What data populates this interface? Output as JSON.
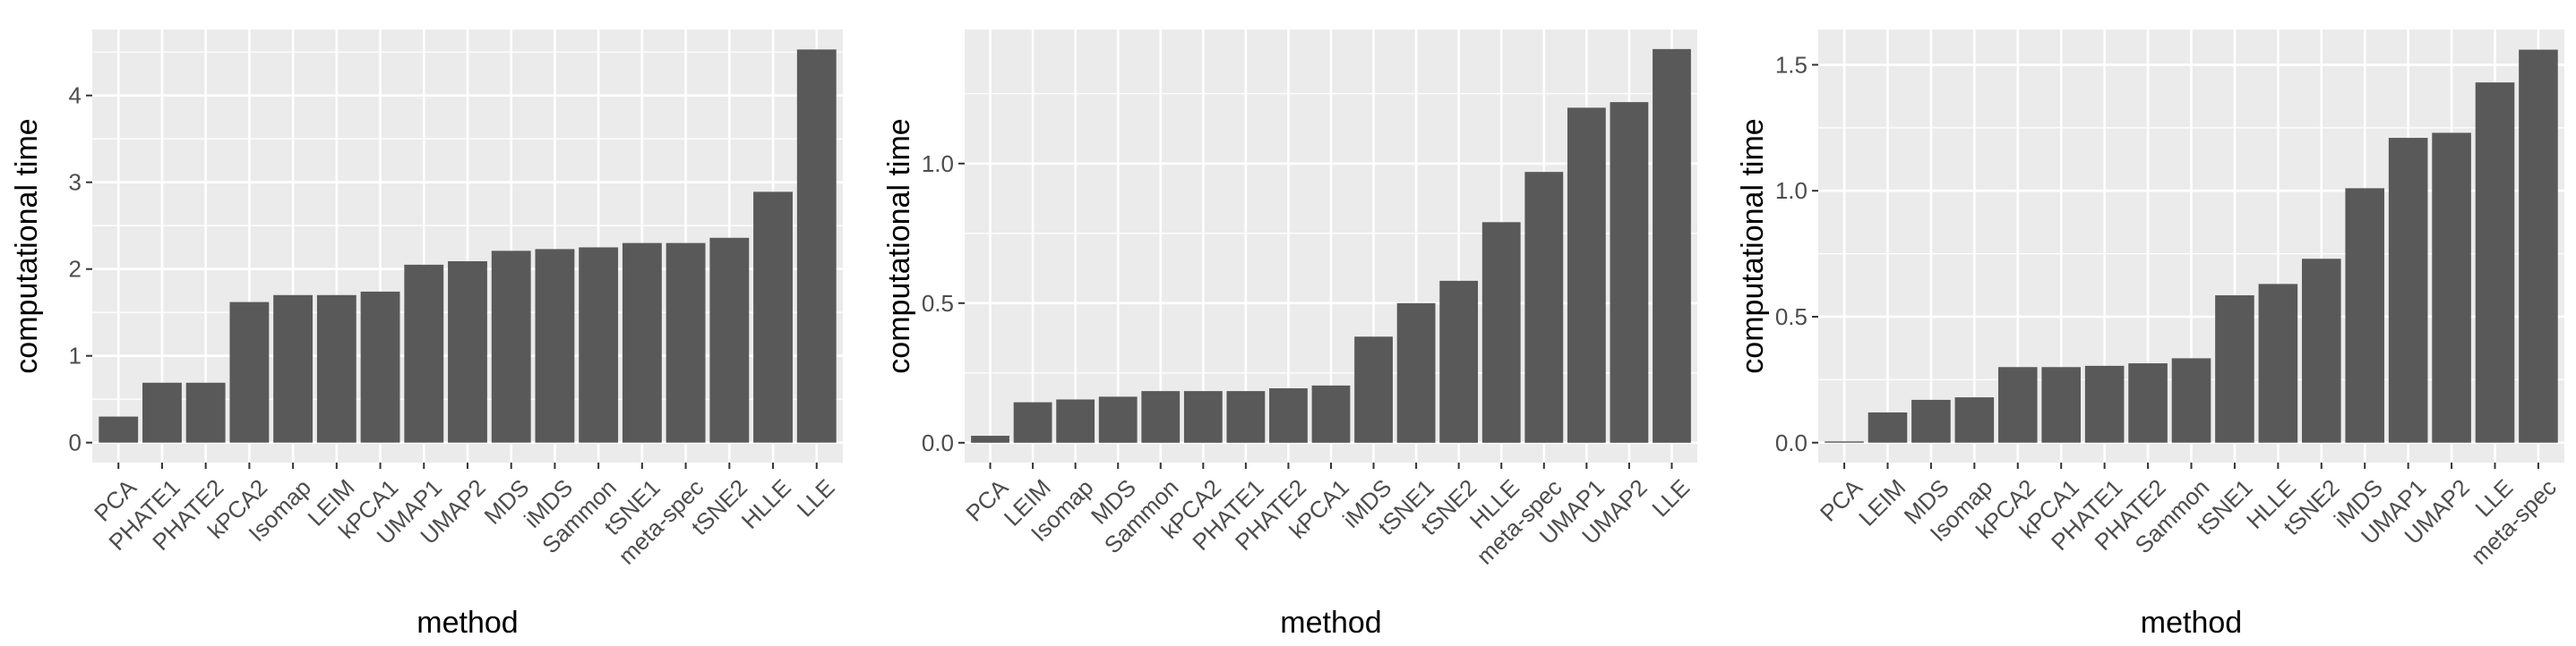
{
  "chart_data": [
    {
      "type": "bar",
      "xlabel": "method",
      "ylabel": "computational time",
      "categories": [
        "PCA",
        "PHATE1",
        "PHATE2",
        "kPCA2",
        "Isomap",
        "LEIM",
        "kPCA1",
        "UMAP1",
        "UMAP2",
        "MDS",
        "iMDS",
        "Sammon",
        "tSNE1",
        "meta-spec",
        "tSNE2",
        "HLLE",
        "LLE"
      ],
      "values": [
        0.3,
        0.69,
        0.69,
        1.62,
        1.7,
        1.7,
        1.74,
        2.05,
        2.09,
        2.21,
        2.23,
        2.25,
        2.3,
        2.3,
        2.36,
        2.89,
        4.53
      ],
      "yticks": [
        0,
        1,
        2,
        3,
        4
      ],
      "ytick_labels": [
        "0",
        "1",
        "2",
        "3",
        "4"
      ],
      "ylim": [
        -0.23,
        4.76
      ],
      "grid": true,
      "legend": "none"
    },
    {
      "type": "bar",
      "xlabel": "method",
      "ylabel": "computational time",
      "categories": [
        "PCA",
        "LEIM",
        "Isomap",
        "MDS",
        "Sammon",
        "kPCA2",
        "PHATE1",
        "PHATE2",
        "kPCA1",
        "iMDS",
        "tSNE1",
        "tSNE2",
        "HLLE",
        "meta-spec",
        "UMAP1",
        "UMAP2",
        "LLE"
      ],
      "values": [
        0.025,
        0.145,
        0.155,
        0.165,
        0.185,
        0.185,
        0.185,
        0.195,
        0.205,
        0.38,
        0.5,
        0.58,
        0.79,
        0.97,
        1.2,
        1.22,
        1.41
      ],
      "yticks": [
        0,
        0.5,
        1.0
      ],
      "ytick_labels": [
        "0.0",
        "0.5",
        "1.0"
      ],
      "ylim": [
        -0.071,
        1.48
      ],
      "grid": true,
      "legend": "none"
    },
    {
      "type": "bar",
      "xlabel": "method",
      "ylabel": "computational time",
      "categories": [
        "PCA",
        "LEIM",
        "MDS",
        "Isomap",
        "kPCA2",
        "kPCA1",
        "PHATE1",
        "PHATE2",
        "Sammon",
        "tSNE1",
        "HLLE",
        "tSNE2",
        "iMDS",
        "UMAP1",
        "UMAP2",
        "LLE",
        "meta-spec"
      ],
      "values": [
        0.005,
        0.12,
        0.17,
        0.18,
        0.3,
        0.3,
        0.305,
        0.315,
        0.335,
        0.585,
        0.63,
        0.73,
        1.01,
        1.21,
        1.23,
        1.43,
        1.56
      ],
      "yticks": [
        0,
        0.5,
        1.0,
        1.5
      ],
      "ytick_labels": [
        "0.0",
        "0.5",
        "1.0",
        "1.5"
      ],
      "ylim": [
        -0.079,
        1.64
      ],
      "grid": true,
      "legend": "none"
    }
  ],
  "colors": {
    "panel_background": "#ebebeb",
    "grid": "#ffffff",
    "bar": "#595959",
    "tick_text": "#4d4d4d",
    "axis_title": "#000000"
  }
}
